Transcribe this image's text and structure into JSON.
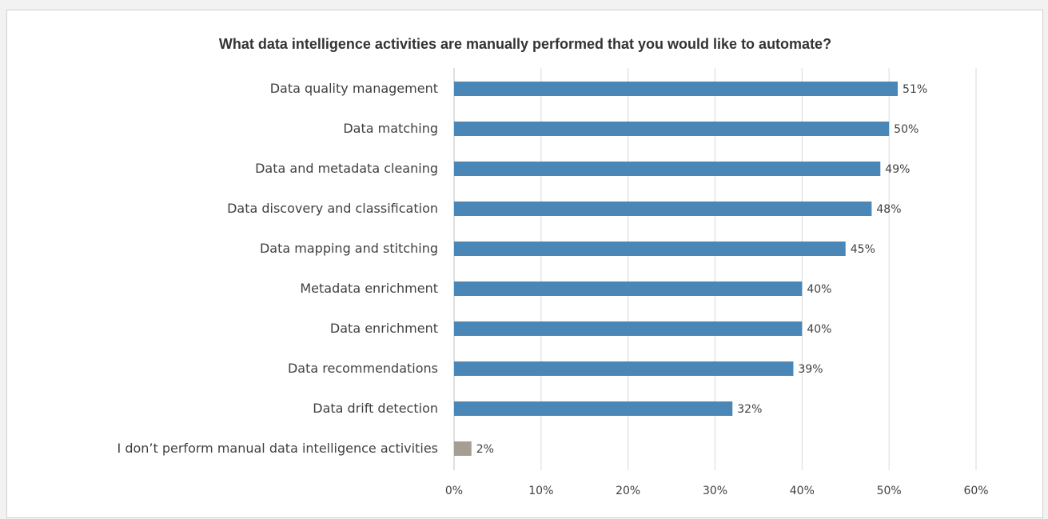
{
  "chart_data": {
    "type": "bar",
    "orientation": "horizontal",
    "title": "What data intelligence activities are manually performed that you would like to automate?",
    "xlabel": "",
    "ylabel": "",
    "xlim": [
      0,
      60
    ],
    "x_ticks": [
      0,
      10,
      20,
      30,
      40,
      50,
      60
    ],
    "x_tick_labels": [
      "0%",
      "10%",
      "20%",
      "30%",
      "40%",
      "50%",
      "60%"
    ],
    "grid": true,
    "legend": "none",
    "categories": [
      "Data quality management",
      "Data matching",
      "Data and metadata cleaning",
      "Data discovery and classification",
      "Data mapping and stitching",
      "Metadata enrichment",
      "Data enrichment",
      "Data recommendations",
      "Data drift detection",
      "I don’t perform manual data intelligence activities"
    ],
    "values": [
      51,
      50,
      49,
      48,
      45,
      40,
      40,
      39,
      32,
      2
    ],
    "data_labels": [
      "51%",
      "50%",
      "49%",
      "48%",
      "45%",
      "40%",
      "40%",
      "39%",
      "32%",
      "2%"
    ],
    "colors": [
      "#4a86b6",
      "#4a86b6",
      "#4a86b6",
      "#4a86b6",
      "#4a86b6",
      "#4a86b6",
      "#4a86b6",
      "#4a86b6",
      "#4a86b6",
      "#a59f93"
    ]
  }
}
